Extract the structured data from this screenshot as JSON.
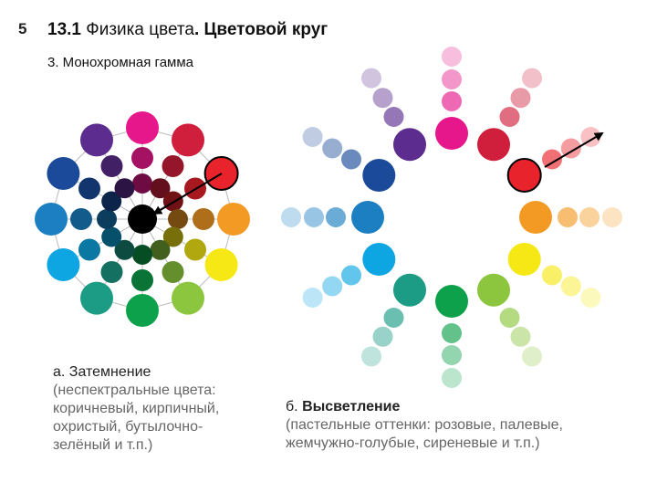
{
  "slide_number": "5",
  "title": {
    "prefix": "13.1",
    "main": "Физика цвета",
    "dot": ".",
    "rest": "Цветовой круг"
  },
  "subtitle": "3. Монохромная гамма",
  "caption_a": {
    "line1": "а. Затемнение",
    "line2": "(неспектральные цвета:",
    "line3": "коричневый, кирпичный,",
    "line4": "охристый, бутылочно-",
    "line5": "зелёный и т.п.)"
  },
  "caption_b": {
    "line1_prefix": "б.",
    "line1_head": "Высветление",
    "line2": "(пастельные оттенки: розовые, палевые,",
    "line3": "жемчужно-голубые, сиреневые и т.п.)"
  },
  "colors": {
    "magenta": "#e5178a",
    "red": "#cf1f3c",
    "red_orange": "#e8232b",
    "orange": "#f39a24",
    "yellow": "#f6e815",
    "yellow_green": "#8cc63e",
    "green": "#0da14b",
    "teal": "#1c9c85",
    "cyan": "#0ea6e2",
    "blue": "#1b7fc1",
    "indigo": "#1a4a99",
    "violet": "#5c2c8e",
    "black": "#000000"
  }
}
